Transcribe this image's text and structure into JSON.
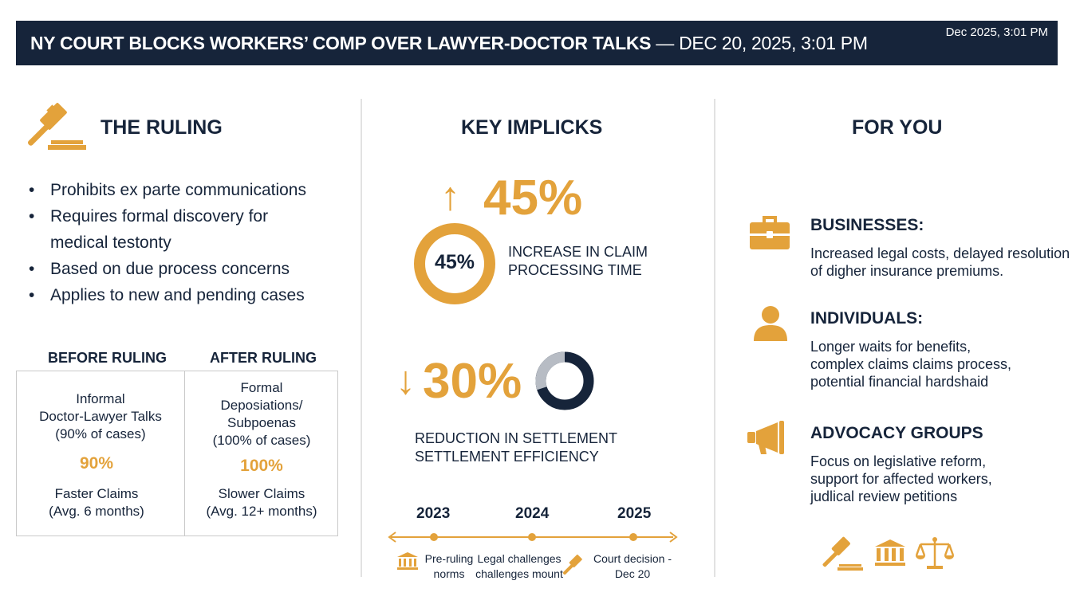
{
  "header": {
    "title_bold": "NY COURT BLOCKS WORKERS’ COMP OVER LAWYER-DOCTOR TALKS",
    "title_rest": " — DEC 20, 2025, 3:01 PM",
    "date": "Dec 2025, 3:01 PM"
  },
  "ruling": {
    "title": "THE RULING",
    "icon": "gavel-icon",
    "bullets": [
      "Prohibits ex parte communications",
      "Requires formal discovery for",
      "medical testonty",
      "Based on due process concerns",
      "Applies to new and pending cases"
    ],
    "comparison": {
      "before_head": "BEFORE RULING",
      "after_head": "AFTER RULING",
      "before_lines": [
        "Informal",
        "Doctor-Lawyer Talks",
        "(90% of cases)"
      ],
      "after_lines": [
        "Formal",
        "Deposiations/",
        "Subpoenas",
        "(100% of cases)"
      ],
      "before_pct": "90%",
      "after_pct": "100%",
      "before_result": [
        "Faster Claims",
        "(Avg. 6 months)"
      ],
      "after_result": [
        "Slower Claims",
        "(Avg. 12+ months)"
      ]
    }
  },
  "implications": {
    "title": "KEY IMPLICKS",
    "stat1": {
      "arrow": "↑",
      "value": "45%",
      "ring_label": "45%",
      "ring_fraction": 0.45,
      "caption": [
        "INCREASE IN CLAIM",
        "PROCESSING TIME"
      ]
    },
    "stat2": {
      "arrow": "↓",
      "value": "30%",
      "donut_fraction": 0.3,
      "caption": [
        "REDUCTION IN SETTLEMENT",
        "SETTLEMENT EFFICIENCY"
      ]
    },
    "timeline": {
      "years": [
        "2023",
        "2024",
        "2025"
      ],
      "labels": [
        [
          "Pre-ruling",
          "norms"
        ],
        [
          "Legal challenges",
          "challenges mount"
        ],
        [
          "Court decision -",
          "Dec 20"
        ]
      ]
    }
  },
  "for_you": {
    "title": "FOR YOU",
    "groups": [
      {
        "icon": "briefcase-icon",
        "head": "BUSINESSES:",
        "lines": [
          "Increased legal costs, delayed resolution",
          "of digher insurance premiums."
        ]
      },
      {
        "icon": "person-icon",
        "head": "INDIVIDUALS:",
        "lines": [
          "Longer waits for benefits,",
          "complex claims claims process,",
          "potential financial hardshaid"
        ]
      },
      {
        "icon": "megaphone-icon",
        "head": "ADVOCACY GROUPS",
        "lines": [
          "Focus on legislative reform,",
          "support for affected workers,",
          "judlical review petitions"
        ]
      }
    ],
    "footer_icons": [
      "gavel-icon",
      "courthouse-icon",
      "scales-icon"
    ]
  },
  "colors": {
    "navy": "#16243a",
    "orange": "#e3a23b",
    "gray": "#b7bcc4"
  }
}
